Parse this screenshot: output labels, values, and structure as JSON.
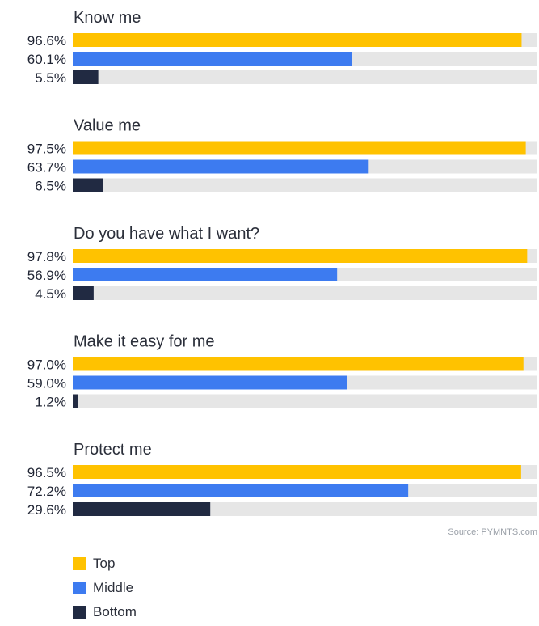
{
  "chart_data": {
    "type": "bar",
    "orientation": "horizontal",
    "xlim": [
      0,
      100
    ],
    "unit": "%",
    "categories": [
      "Know me",
      "Value me",
      "Do you have what I want?",
      "Make it easy for me",
      "Protect me"
    ],
    "series": [
      {
        "name": "Top",
        "color": "#FFC200",
        "values": [
          96.6,
          97.5,
          97.8,
          97.0,
          96.5
        ],
        "labels": [
          "96.6%",
          "97.5%",
          "97.8%",
          "97.0%",
          "96.5%"
        ]
      },
      {
        "name": "Middle",
        "color": "#3D7BF0",
        "values": [
          60.1,
          63.7,
          56.9,
          59.0,
          72.2
        ],
        "labels": [
          "60.1%",
          "63.7%",
          "56.9%",
          "59.0%",
          "72.2%"
        ]
      },
      {
        "name": "Bottom",
        "color": "#212A42",
        "values": [
          5.5,
          6.5,
          4.5,
          1.2,
          29.6
        ],
        "labels": [
          "5.5%",
          "6.5%",
          "4.5%",
          "1.2%",
          "29.6%"
        ]
      }
    ],
    "track_color": "#E6E6E6",
    "legend_position": "bottom-left"
  },
  "source": "Source: PYMNTS.com",
  "legend": [
    {
      "label": "Top",
      "color": "#FFC200"
    },
    {
      "label": "Middle",
      "color": "#3D7BF0"
    },
    {
      "label": "Bottom",
      "color": "#212A42"
    }
  ]
}
